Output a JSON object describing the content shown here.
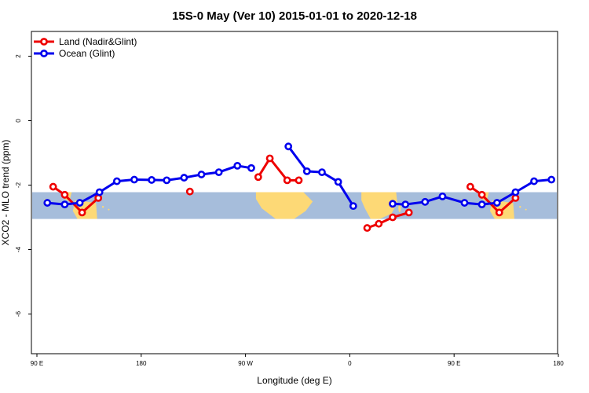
{
  "chart_data": {
    "type": "line",
    "title": "15S-0 May (Ver 10)   2015-01-01 to 2020-12-18",
    "xlabel": "Longitude (deg E)",
    "ylabel": "XCO2 - MLO trend (ppm)",
    "xlim": [
      90,
      540
    ],
    "ylim": [
      -7.2,
      2.8
    ],
    "xticks": [
      {
        "value": 90,
        "label": "90 E"
      },
      {
        "value": 180,
        "label": "180"
      },
      {
        "value": 270,
        "label": "90 W"
      },
      {
        "value": 360,
        "label": "0"
      },
      {
        "value": 450,
        "label": "90 E"
      },
      {
        "value": 540,
        "label": "180"
      }
    ],
    "yticks": [
      {
        "value": 2,
        "label": "2"
      },
      {
        "value": 0,
        "label": "0"
      },
      {
        "value": -2,
        "label": "-2"
      },
      {
        "value": -4,
        "label": "-4"
      },
      {
        "value": -6,
        "label": "-6"
      }
    ],
    "latitude_band": [
      -3.05,
      -2.22
    ],
    "colors": {
      "land": "#ee0000",
      "ocean": "#0000ee",
      "band_ocean": "#a6bddb",
      "band_land": "#fdd976"
    },
    "legend": {
      "placement": "top-left",
      "entries": [
        {
          "name": "Land (Nadir&Glint)",
          "color": "#ee0000"
        },
        {
          "name": "Ocean (Glint)",
          "color": "#0000ee"
        }
      ]
    },
    "series": [
      {
        "name": "Land (Nadir&Glint)",
        "color": "#ee0000",
        "segments": [
          [
            [
              104,
              -2.05
            ],
            [
              114,
              -2.3
            ],
            [
              129,
              -2.85
            ],
            [
              143,
              -2.4
            ]
          ],
          [
            [
              222,
              -2.2
            ]
          ],
          [
            [
              281,
              -1.75
            ],
            [
              291,
              -1.17
            ],
            [
              306,
              -1.85
            ],
            [
              316,
              -1.85
            ]
          ],
          [
            [
              375,
              -3.33
            ],
            [
              385,
              -3.2
            ],
            [
              397,
              -3.0
            ],
            [
              411,
              -2.85
            ]
          ],
          [
            [
              464,
              -2.05
            ],
            [
              474,
              -2.3
            ],
            [
              489,
              -2.85
            ],
            [
              503,
              -2.4
            ]
          ]
        ]
      },
      {
        "name": "Ocean (Glint)",
        "color": "#0000ee",
        "segments": [
          [
            [
              99,
              -2.55
            ],
            [
              114,
              -2.6
            ],
            [
              127,
              -2.55
            ],
            [
              144,
              -2.22
            ],
            [
              159,
              -1.88
            ],
            [
              174,
              -1.83
            ],
            [
              189,
              -1.84
            ],
            [
              202,
              -1.85
            ],
            [
              217,
              -1.77
            ],
            [
              232,
              -1.67
            ],
            [
              247,
              -1.6
            ],
            [
              263,
              -1.4
            ],
            [
              275,
              -1.47
            ]
          ],
          [
            [
              307,
              -0.8
            ],
            [
              323,
              -1.57
            ],
            [
              336,
              -1.6
            ],
            [
              350,
              -1.9
            ],
            [
              363,
              -2.65
            ]
          ],
          [
            [
              397,
              -2.58
            ],
            [
              408,
              -2.6
            ],
            [
              425,
              -2.52
            ],
            [
              440,
              -2.35
            ],
            [
              459,
              -2.55
            ],
            [
              474,
              -2.6
            ],
            [
              487,
              -2.55
            ],
            [
              503,
              -2.22
            ],
            [
              519,
              -1.88
            ],
            [
              534,
              -1.83
            ]
          ]
        ]
      }
    ]
  }
}
